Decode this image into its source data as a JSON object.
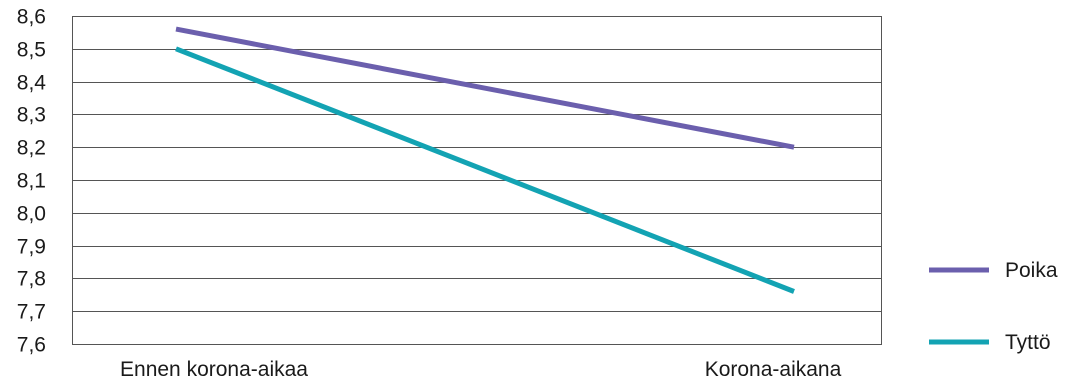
{
  "chart_data": {
    "type": "line",
    "title": "",
    "xlabel": "",
    "ylabel": "",
    "categories": [
      "Ennen korona-aikaa",
      "Korona-aikana"
    ],
    "ylim": [
      7.6,
      8.6
    ],
    "ytick_labels": [
      "7,6",
      "7,7",
      "7,8",
      "7,9",
      "8,0",
      "8,1",
      "8,2",
      "8,3",
      "8,4",
      "8,5",
      "8,6"
    ],
    "grid": "horizontal",
    "legend_position": "right",
    "series": [
      {
        "name": "Poika",
        "values": [
          8.56,
          8.2
        ],
        "color": "#6b5fad"
      },
      {
        "name": "Tyttö",
        "values": [
          8.5,
          7.76
        ],
        "color": "#13a3b3"
      }
    ]
  }
}
